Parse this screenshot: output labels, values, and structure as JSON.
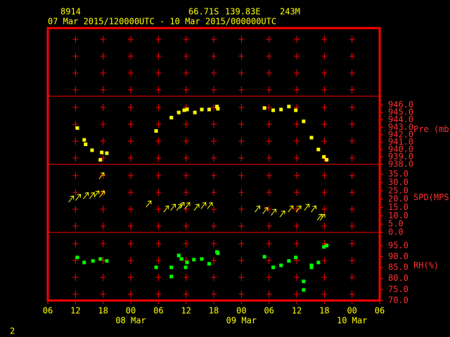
{
  "header": {
    "station": "8914",
    "lat": "66.71S",
    "lon": "139.83E",
    "elev": "243M",
    "period": "07 Mar 2015/120000UTC - 10 Mar 2015/000000UTC"
  },
  "x_axis": {
    "xlim": [
      0,
      72
    ],
    "xticks": [
      {
        "value": 0,
        "label": "06"
      },
      {
        "value": 6,
        "label": "12"
      },
      {
        "value": 12,
        "label": "18"
      },
      {
        "value": 18,
        "label": "00"
      },
      {
        "value": 24,
        "label": "06"
      },
      {
        "value": 30,
        "label": "12"
      },
      {
        "value": 36,
        "label": "18"
      },
      {
        "value": 42,
        "label": "00"
      },
      {
        "value": 48,
        "label": "06"
      },
      {
        "value": 54,
        "label": "12"
      },
      {
        "value": 60,
        "label": "18"
      },
      {
        "value": 66,
        "label": "00"
      },
      {
        "value": 72,
        "label": "06"
      }
    ],
    "date_labels": [
      {
        "value": 18,
        "label": "08 Mar"
      },
      {
        "value": 42,
        "label": "09 Mar"
      },
      {
        "value": 66,
        "label": "10 Mar"
      }
    ]
  },
  "chart_data": [
    {
      "type": "scatter",
      "ylabel": "Pre (mb)",
      "color": "#ffff00",
      "x": [
        6.4,
        7.9,
        8.2,
        9.6,
        11.4,
        11.7,
        12.8,
        23.5,
        26.8,
        28.4,
        29.6,
        30.2,
        31.9,
        33.4,
        35.0,
        36.7,
        36.9,
        47.0,
        48.9,
        50.6,
        52.3,
        53.8,
        55.5,
        57.2,
        58.7,
        59.9,
        60.5
      ],
      "values": [
        942.9,
        941.3,
        940.7,
        939.9,
        938.6,
        939.6,
        939.5,
        942.5,
        944.3,
        945.0,
        945.3,
        945.4,
        945.0,
        945.4,
        945.4,
        945.8,
        945.5,
        945.6,
        945.3,
        945.4,
        945.8,
        945.3,
        943.8,
        941.6,
        940.0,
        939.0,
        938.6
      ],
      "ylim": [
        938,
        947.2
      ],
      "yticks": [
        {
          "value": 938,
          "label": "938.0"
        },
        {
          "value": 939,
          "label": "939.0"
        },
        {
          "value": 940,
          "label": "940.0"
        },
        {
          "value": 941,
          "label": "941.0"
        },
        {
          "value": 942,
          "label": "942.0"
        },
        {
          "value": 943,
          "label": "943.0"
        },
        {
          "value": 944,
          "label": "944.0"
        },
        {
          "value": 945,
          "label": "945.0"
        },
        {
          "value": 946,
          "label": "946.0"
        }
      ]
    },
    {
      "type": "arrow",
      "ylabel": "SPD(MPS)",
      "color": "#ffff00",
      "x": [
        5.6,
        7.1,
        8.8,
        10.1,
        11.1,
        12.3,
        12.2,
        22.4,
        26.2,
        27.7,
        29.0,
        29.6,
        30.8,
        32.8,
        34.3,
        35.7,
        46.0,
        47.7,
        49.5,
        51.4,
        53.2,
        54.9,
        56.7,
        58.2,
        59.5,
        60.1
      ],
      "values": [
        22,
        23,
        24,
        24,
        25,
        25,
        36,
        19,
        16,
        17,
        17,
        18,
        18,
        17,
        18,
        18,
        16,
        15,
        14,
        13,
        16,
        16,
        17,
        16,
        11,
        11
      ],
      "ylim": [
        0,
        41
      ],
      "yticks": [
        {
          "value": 0,
          "label": "0.0"
        },
        {
          "value": 5,
          "label": "5.0"
        },
        {
          "value": 10,
          "label": "10.0"
        },
        {
          "value": 15,
          "label": "15.0"
        },
        {
          "value": 20,
          "label": "20.0"
        },
        {
          "value": 25,
          "label": "25.0"
        },
        {
          "value": 30,
          "label": "30.0"
        },
        {
          "value": 35,
          "label": "35.0"
        }
      ]
    },
    {
      "type": "scatter",
      "ylabel": "RH(%)",
      "color": "#00ff00",
      "x": [
        6.4,
        7.9,
        9.8,
        11.4,
        12.8,
        23.5,
        26.8,
        26.8,
        28.4,
        29.0,
        29.9,
        30.2,
        31.7,
        33.4,
        35.0,
        36.7,
        36.9,
        47.0,
        48.9,
        50.6,
        52.3,
        53.8,
        55.5,
        55.5,
        57.2,
        57.2,
        58.7,
        59.9,
        60.5
      ],
      "values": [
        89.6,
        87.3,
        88.0,
        88.9,
        88.0,
        85.1,
        85.1,
        80.9,
        90.5,
        88.9,
        85.1,
        87.3,
        88.6,
        88.9,
        86.7,
        92.1,
        91.5,
        89.9,
        85.1,
        86.0,
        88.0,
        89.6,
        78.7,
        74.8,
        86.0,
        85.1,
        87.3,
        94.4,
        95.0
      ],
      "ylim": [
        70,
        101
      ],
      "yticks": [
        {
          "value": 70,
          "label": "70.0"
        },
        {
          "value": 75,
          "label": "75.0"
        },
        {
          "value": 80,
          "label": "80.0"
        },
        {
          "value": 85,
          "label": "85.0"
        },
        {
          "value": 90,
          "label": "90.0"
        },
        {
          "value": 95,
          "label": "95.0"
        }
      ]
    }
  ],
  "page_number": "2"
}
